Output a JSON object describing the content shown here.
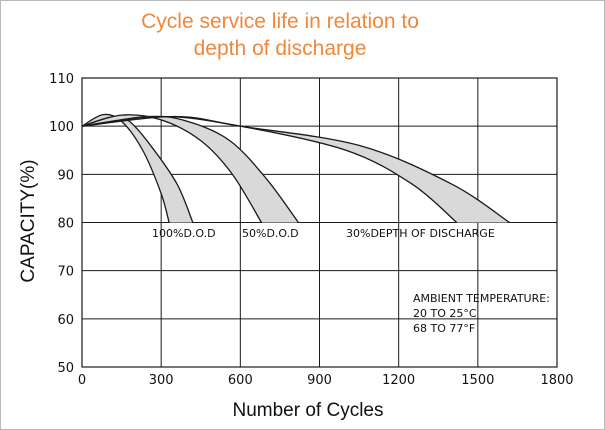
{
  "chart_data": {
    "type": "area",
    "title": "Cycle service life in relation to",
    "subtitle": "depth of discharge",
    "xlabel": "Number of Cycles",
    "ylabel": "CAPACITY(%)",
    "xlim": [
      0,
      1800
    ],
    "ylim": [
      50,
      110
    ],
    "xticks": [
      "0",
      "300",
      "600",
      "900",
      "1200",
      "1500",
      "1800"
    ],
    "yticks": [
      "50",
      "60",
      "70",
      "80",
      "90",
      "100",
      "110"
    ],
    "grid": true,
    "series": [
      {
        "name": "100%D.O.D",
        "upper": [
          [
            0,
            100
          ],
          [
            80,
            102.4
          ],
          [
            150,
            101
          ],
          [
            230,
            95
          ],
          [
            300,
            86
          ],
          [
            330,
            80
          ]
        ],
        "lower": [
          [
            0,
            100
          ],
          [
            120,
            102
          ],
          [
            180,
            101
          ],
          [
            260,
            96
          ],
          [
            360,
            88
          ],
          [
            420,
            80
          ]
        ]
      },
      {
        "name": "50%D.O.D",
        "upper": [
          [
            0,
            100
          ],
          [
            150,
            102.3
          ],
          [
            300,
            101.3
          ],
          [
            450,
            97
          ],
          [
            570,
            90
          ],
          [
            680,
            80
          ]
        ],
        "lower": [
          [
            0,
            100
          ],
          [
            250,
            102
          ],
          [
            400,
            101
          ],
          [
            560,
            97
          ],
          [
            700,
            89
          ],
          [
            820,
            80
          ]
        ]
      },
      {
        "name": "30%DEPTH OF DISCHARGE",
        "upper": [
          [
            0,
            100
          ],
          [
            300,
            102
          ],
          [
            600,
            100
          ],
          [
            1000,
            95
          ],
          [
            1250,
            88
          ],
          [
            1420,
            80
          ]
        ],
        "lower": [
          [
            0,
            100
          ],
          [
            350,
            102
          ],
          [
            600,
            100
          ],
          [
            1050,
            96
          ],
          [
            1400,
            88
          ],
          [
            1620,
            80
          ]
        ]
      }
    ],
    "annotations": [
      "AMBIENT TEMPERATURE:",
      "20 TO 25°C",
      "68 TO 77°F"
    ]
  },
  "colors": {
    "title": "#f0883a",
    "fill": "#d9d9d9",
    "line": "#1a1a1a"
  }
}
